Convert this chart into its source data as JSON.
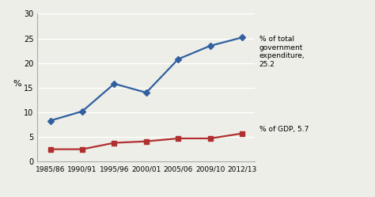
{
  "x_labels": [
    "1985/86",
    "1990/91",
    "1995/96",
    "2000/01",
    "2005/06",
    "2009/10",
    "2012/13"
  ],
  "x_positions": [
    0,
    1,
    2,
    3,
    4,
    5,
    6
  ],
  "gov_expenditure": [
    8.3,
    10.2,
    15.8,
    14.0,
    20.8,
    23.5,
    25.2
  ],
  "gdp": [
    2.5,
    2.5,
    3.8,
    4.1,
    4.7,
    4.7,
    5.7
  ],
  "gov_color": "#3060A0",
  "gdp_color": "#B03030",
  "ylabel": "%",
  "ylim": [
    0,
    30
  ],
  "yticks": [
    0,
    5,
    10,
    15,
    20,
    25,
    30
  ],
  "gov_label": "% of total\ngovernment\nexpenditure,\n25.2",
  "gdp_label": "% of GDP, 5.7",
  "background_color": "#EEEEE8",
  "plot_bg": "#EEEEE8",
  "marker_gov": "D",
  "marker_gdp": "s",
  "marker_size": 4,
  "linewidth": 1.6
}
